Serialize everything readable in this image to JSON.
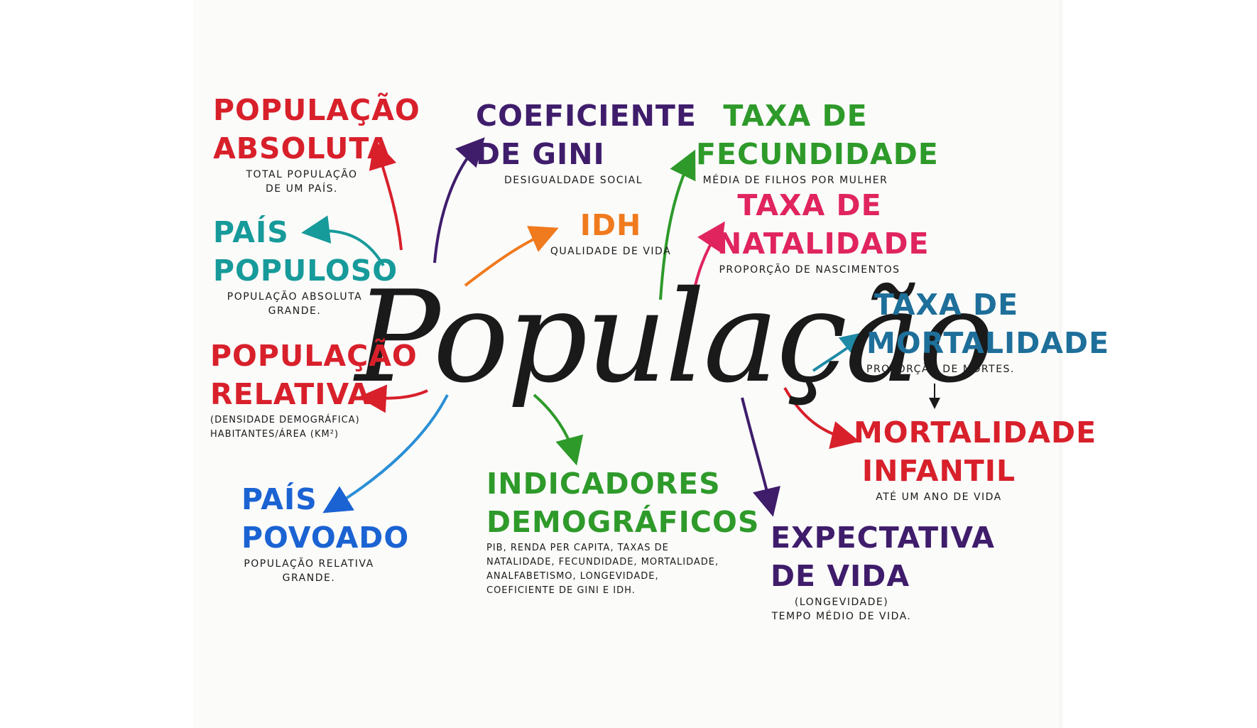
{
  "central_topic": "População",
  "nodes": {
    "populacao_absoluta": {
      "title": "POPULAÇÃO\nABSOLUTA",
      "note": "TOTAL POPULAÇÃO\nDE UM PAÍS.",
      "color": "#d8202b"
    },
    "pais_populoso": {
      "title": "PAÍS\nPOPULOSO",
      "note": "POPULAÇÃO ABSOLUTA\nGRANDE.",
      "color": "#179a9a"
    },
    "populacao_relativa": {
      "title": "POPULAÇÃO\nRELATIVA",
      "note": "(DENSIDADE DEMOGRÁFICA)\nHABITANTES/ÁREA (Km²)",
      "color": "#d8202b"
    },
    "pais_povoado": {
      "title": "PAÍS\nPOVOADO",
      "note": "POPULAÇÃO RELATIVA\nGRANDE.",
      "color": "#1b63d3"
    },
    "coeficiente_gini": {
      "title": "COEFICIENTE\nDE GINI",
      "note": "DESIGUALDADE SOCIAL",
      "color": "#3f1d6b"
    },
    "idh": {
      "title": "IDH",
      "note": "QUALIDADE DE VIDA",
      "color": "#f07a1e"
    },
    "indicadores": {
      "title": "INDICADORES\nDEMOGRÁFICOS",
      "note": "PIB, RENDA PER CAPITA, TAXAS DE\nNATALIDADE, FECUNDIDADE, MORTALIDADE,\nANALFABETISMO, LONGEVIDADE,\nCOEFICIENTE DE GINI E IDH.",
      "color": "#2e9a2a"
    },
    "taxa_fecundidade": {
      "title": "TAXA DE\nFECUNDIDADE",
      "note": "MÉDIA DE FILHOS POR MULHER",
      "color": "#2e9a2a"
    },
    "taxa_natalidade": {
      "title": "TAXA DE\nNATALIDADE",
      "note": "PROPORÇÃO DE NASCIMENTOS",
      "color": "#e0245e"
    },
    "taxa_mortalidade": {
      "title": "TAXA DE\nMORTALIDADE",
      "note": "PROPORÇÃO DE MORTES.",
      "color": "#1e6f9a"
    },
    "mortalidade_infantil": {
      "title": "MORTALIDADE\nINFANTIL",
      "note": "ATÉ UM ANO DE VIDA",
      "color": "#d8202b"
    },
    "expectativa_vida": {
      "title": "EXPECTATIVA\nDE VIDA",
      "note": "(LONGEVIDADE)\nTEMPO MÉDIO DE VIDA.",
      "color": "#3f1d6b"
    }
  },
  "arrow_colors": {
    "red": "#d8202b",
    "teal": "#179a9a",
    "purple": "#3f1d6b",
    "orange": "#f07a1e",
    "green": "#2e9a2a",
    "pink": "#e0245e",
    "blue_light": "#2a8fd6",
    "teal_dark": "#1e8aa6",
    "black": "#1a1a1a"
  }
}
